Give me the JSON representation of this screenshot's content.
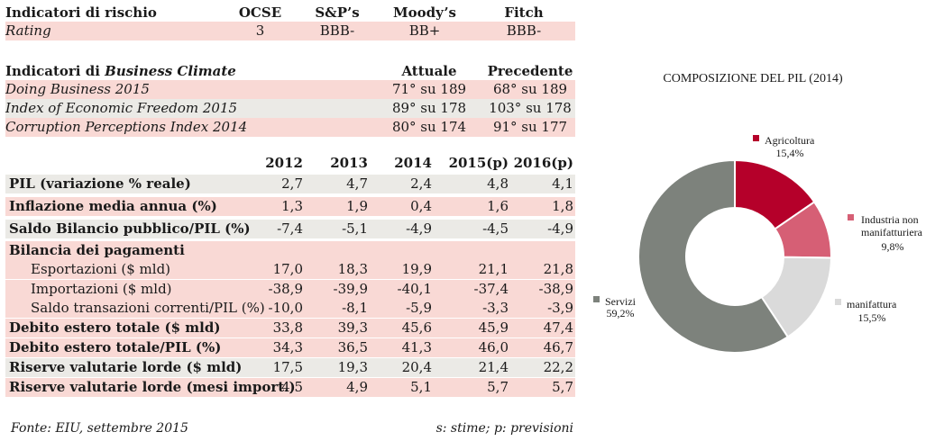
{
  "ratings": {
    "header": {
      "label": "Indicatori di rischio",
      "ocse": "OCSE",
      "sp": "S&P’s",
      "moodys": "Moody’s",
      "fitch": "Fitch"
    },
    "row": {
      "label": "Rating",
      "ocse": "3",
      "sp": "BBB-",
      "moodys": "BB+",
      "fitch": "BBB-"
    }
  },
  "business_climate": {
    "header": {
      "label_prefix": "Indicatori di ",
      "label_italic": "Business Climate",
      "current": "Attuale",
      "previous": "Precedente"
    },
    "rows": [
      {
        "label": "Doing Business 2015",
        "current": "71° su 189",
        "previous": "68° su 189"
      },
      {
        "label": "Index of Economic Freedom 2015",
        "current": "89° su 178",
        "previous": "103° su 178"
      },
      {
        "label": "Corruption Perceptions Index 2014",
        "current": "80° su 174",
        "previous": "91° su 177"
      }
    ]
  },
  "macro": {
    "years": [
      "2012",
      "2013",
      "2014",
      "2015(p)",
      "2016(p)"
    ],
    "rows": [
      {
        "label": "PIL (variazione % reale)",
        "values": [
          "2,7",
          "4,7",
          "2,4",
          "4,8",
          "4,1"
        ]
      },
      {
        "label": "Inflazione media annua (%)",
        "values": [
          "1,3",
          "1,9",
          "0,4",
          "1,6",
          "1,8"
        ]
      },
      {
        "label": "Saldo Bilancio pubblico/PIL (%)",
        "values": [
          "-7,4",
          "-5,1",
          "-4,9",
          "-4,5",
          "-4,9"
        ]
      },
      {
        "label": "Bilancia dei pagamenti",
        "values": []
      },
      {
        "label": "Esportazioni ($ mld)",
        "values": [
          "17,0",
          "18,3",
          "19,9",
          "21,1",
          "21,8"
        ]
      },
      {
        "label": "Importazioni ($ mld)",
        "values": [
          "-38,9",
          "-39,9",
          "-40,1",
          "-37,4",
          "-38,9"
        ]
      },
      {
        "label": "Saldo transazioni correnti/PIL (%)",
        "values": [
          "-10,0",
          "-8,1",
          "-5,9",
          "-3,3",
          "-3,9"
        ]
      },
      {
        "label": "Debito estero totale ($ mld)",
        "values": [
          "33,8",
          "39,3",
          "45,6",
          "45,9",
          "47,4"
        ]
      },
      {
        "label": "Debito estero totale/PIL (%)",
        "values": [
          "34,3",
          "36,5",
          "41,3",
          "46,0",
          "46,7"
        ]
      },
      {
        "label": "Riserve valutarie lorde ($ mld)",
        "values": [
          "17,5",
          "19,3",
          "20,4",
          "21,4",
          "22,2"
        ]
      },
      {
        "label": "Riserve valutarie lorde (mesi import.)",
        "values": [
          "4,5",
          "4,9",
          "5,1",
          "5,7",
          "5,7"
        ]
      }
    ]
  },
  "footer": {
    "source": "Fonte: EIU, settembre 2015",
    "legend": "s: stime; p: previsioni"
  },
  "chart_data": {
    "type": "pie",
    "title": "COMPOSIZIONE DEL PIL (2014)",
    "slices": [
      {
        "label": "Agricoltura",
        "value": 15.4,
        "value_label": "15,4%",
        "color": "#b5002a"
      },
      {
        "label": "Industria non manifatturiera",
        "value": 9.8,
        "value_label": "9,8%",
        "color": "#d65f75"
      },
      {
        "label": "manifattura",
        "value": 15.5,
        "value_label": "15,5%",
        "color": "#dadada"
      },
      {
        "label": "Servizi",
        "value": 59.2,
        "value_label": "59,2%",
        "color": "#7d827c"
      }
    ],
    "legend": "inline labels"
  }
}
